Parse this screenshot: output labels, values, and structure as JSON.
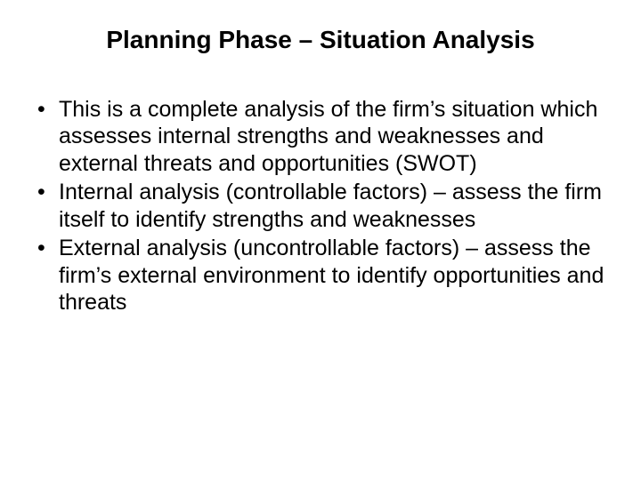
{
  "slide": {
    "title": "Planning Phase – Situation Analysis",
    "bullets": [
      "This is a complete analysis of the firm’s situation which assesses internal strengths and weaknesses and external threats and opportunities (SWOT)",
      "Internal analysis (controllable factors) – assess the firm itself to identify strengths and weaknesses",
      "External analysis (uncontrollable factors) – assess the firm’s external environment to identify opportunities and threats"
    ],
    "colors": {
      "background": "#ffffff",
      "text": "#000000"
    },
    "typography": {
      "title_fontsize_pt": 28,
      "title_weight": "bold",
      "body_fontsize_pt": 25,
      "body_weight": "normal",
      "font_family": "Arial"
    }
  }
}
